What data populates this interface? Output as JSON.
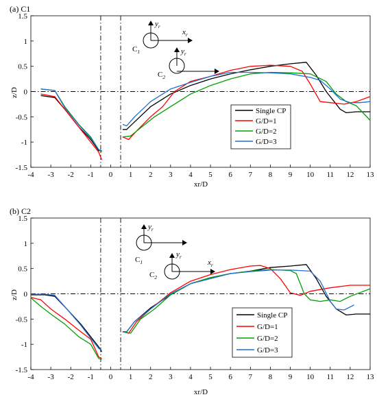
{
  "chart_data": [
    {
      "type": "line",
      "title": "(a) C1",
      "xlabel": "xr/D",
      "ylabel": "z/D",
      "xlim": [
        -4,
        13
      ],
      "ylim": [
        -1.5,
        1.5
      ],
      "xticks": [
        "-4",
        "-3",
        "-2",
        "-1",
        "0",
        "1",
        "2",
        "3",
        "4",
        "5",
        "6",
        "7",
        "8",
        "9",
        "10",
        "11",
        "12",
        "13"
      ],
      "yticks": [
        "-1.5",
        "-1",
        "-0.5",
        "0",
        "0.5",
        "1",
        "1.5"
      ],
      "grid": false,
      "legend_position": "lower-right",
      "reference_lines": {
        "horizontal_y": 0,
        "vertical_x": [
          -0.5,
          0.5
        ]
      },
      "inset_labels": {
        "c1": "C",
        "c1_sub": "1",
        "c2": "C",
        "c2_sub": "2",
        "yr": "y",
        "yr_sub": "r",
        "xr": "x",
        "xr_sub": "r"
      },
      "series": [
        {
          "name": "Single CP",
          "color": "#000000",
          "segments": [
            [
              [
                -3.5,
                -0.08
              ],
              [
                -2.8,
                -0.12
              ],
              [
                -2.3,
                -0.35
              ],
              [
                -1.6,
                -0.7
              ],
              [
                -1.0,
                -0.95
              ],
              [
                -0.6,
                -1.17
              ],
              [
                -0.45,
                -1.17
              ]
            ],
            [
              [
                0.6,
                -0.75
              ],
              [
                0.8,
                -0.75
              ],
              [
                1.2,
                -0.6
              ],
              [
                2.0,
                -0.3
              ],
              [
                3.0,
                -0.05
              ],
              [
                4.0,
                0.12
              ],
              [
                5.0,
                0.25
              ],
              [
                6.0,
                0.35
              ],
              [
                7.0,
                0.43
              ],
              [
                8.0,
                0.5
              ],
              [
                9.0,
                0.55
              ],
              [
                9.8,
                0.58
              ],
              [
                10.3,
                0.32
              ],
              [
                10.8,
                0.0
              ],
              [
                11.5,
                -0.35
              ],
              [
                11.8,
                -0.42
              ],
              [
                12.3,
                -0.4
              ],
              [
                13.0,
                -0.4
              ]
            ]
          ]
        },
        {
          "name": "G/D=1",
          "color": "#ff0000",
          "segments": [
            [
              [
                -3.5,
                -0.05
              ],
              [
                -2.8,
                -0.1
              ],
              [
                -2.2,
                -0.4
              ],
              [
                -1.5,
                -0.75
              ],
              [
                -1.0,
                -1.0
              ],
              [
                -0.6,
                -1.2
              ],
              [
                -0.45,
                -1.35
              ]
            ],
            [
              [
                0.6,
                -0.9
              ],
              [
                0.9,
                -0.95
              ],
              [
                1.3,
                -0.78
              ],
              [
                2.0,
                -0.5
              ],
              [
                2.6,
                -0.3
              ],
              [
                3.2,
                0.0
              ],
              [
                4.0,
                0.2
              ],
              [
                5.0,
                0.3
              ],
              [
                6.0,
                0.42
              ],
              [
                7.0,
                0.5
              ],
              [
                8.0,
                0.52
              ],
              [
                9.0,
                0.5
              ],
              [
                9.6,
                0.4
              ],
              [
                10.0,
                0.15
              ],
              [
                10.5,
                -0.2
              ],
              [
                11.0,
                -0.22
              ],
              [
                11.7,
                -0.25
              ],
              [
                12.3,
                -0.2
              ],
              [
                13.0,
                -0.1
              ]
            ]
          ]
        },
        {
          "name": "G/D=2",
          "color": "#00a000",
          "segments": [
            [
              [
                -3.5,
                0.05
              ],
              [
                -2.8,
                0.02
              ],
              [
                -2.3,
                -0.3
              ],
              [
                -1.6,
                -0.65
              ],
              [
                -1.0,
                -0.9
              ],
              [
                -0.6,
                -1.15
              ],
              [
                -0.45,
                -1.2
              ]
            ],
            [
              [
                0.6,
                -0.9
              ],
              [
                1.0,
                -0.88
              ],
              [
                1.5,
                -0.72
              ],
              [
                2.2,
                -0.5
              ],
              [
                3.0,
                -0.3
              ],
              [
                4.0,
                -0.05
              ],
              [
                5.0,
                0.12
              ],
              [
                6.0,
                0.25
              ],
              [
                7.0,
                0.35
              ],
              [
                8.0,
                0.38
              ],
              [
                9.0,
                0.37
              ],
              [
                10.0,
                0.35
              ],
              [
                10.8,
                0.2
              ],
              [
                11.3,
                -0.05
              ],
              [
                11.8,
                -0.2
              ],
              [
                12.3,
                -0.28
              ],
              [
                13.0,
                -0.57
              ]
            ]
          ]
        },
        {
          "name": "G/D=3",
          "color": "#1f6fd1",
          "segments": [
            [
              [
                -3.5,
                0.05
              ],
              [
                -2.8,
                0.02
              ],
              [
                -2.3,
                -0.32
              ],
              [
                -1.6,
                -0.66
              ],
              [
                -1.0,
                -0.92
              ],
              [
                -0.6,
                -1.15
              ],
              [
                -0.45,
                -1.18
              ]
            ],
            [
              [
                0.6,
                -0.65
              ],
              [
                0.8,
                -0.68
              ],
              [
                1.2,
                -0.5
              ],
              [
                2.0,
                -0.2
              ],
              [
                3.0,
                0.05
              ],
              [
                4.0,
                0.18
              ],
              [
                5.0,
                0.3
              ],
              [
                6.0,
                0.38
              ],
              [
                7.0,
                0.38
              ],
              [
                8.0,
                0.37
              ],
              [
                9.0,
                0.35
              ],
              [
                10.0,
                0.28
              ],
              [
                10.5,
                0.22
              ],
              [
                11.0,
                0.05
              ],
              [
                11.5,
                -0.15
              ],
              [
                12.0,
                -0.22
              ],
              [
                12.5,
                -0.22
              ],
              [
                13.0,
                -0.2
              ]
            ]
          ]
        }
      ]
    },
    {
      "type": "line",
      "title": "(b) C2",
      "xlabel": "xr/D",
      "ylabel": "z/D",
      "xlim": [
        -4,
        13
      ],
      "ylim": [
        -1.5,
        1.5
      ],
      "xticks": [
        "-4",
        "-3",
        "-2",
        "-1",
        "0",
        "1",
        "2",
        "3",
        "4",
        "5",
        "6",
        "7",
        "8",
        "9",
        "10",
        "11",
        "12",
        "13"
      ],
      "yticks": [
        "-1.5",
        "-1",
        "-0.5",
        "0",
        "0.5",
        "1",
        "1.5"
      ],
      "grid": false,
      "legend_position": "lower-right",
      "reference_lines": {
        "horizontal_y": 0,
        "vertical_x": [
          -0.5,
          0.5
        ]
      },
      "inset_labels": {
        "c1": "C",
        "c1_sub": "1",
        "c2": "C",
        "c2_sub": "2",
        "yr": "y",
        "yr_sub": "r",
        "xr": "x",
        "xr_sub": "r"
      },
      "series": [
        {
          "name": "Single CP",
          "color": "#000000",
          "segments": [
            [
              [
                -4.0,
                -0.02
              ],
              [
                -3.3,
                -0.02
              ],
              [
                -2.8,
                -0.05
              ],
              [
                -2.2,
                -0.3
              ],
              [
                -1.5,
                -0.6
              ],
              [
                -1.0,
                -0.85
              ],
              [
                -0.6,
                -1.05
              ],
              [
                -0.45,
                -1.15
              ]
            ],
            [
              [
                0.6,
                -0.75
              ],
              [
                0.8,
                -0.75
              ],
              [
                1.2,
                -0.55
              ],
              [
                2.0,
                -0.28
              ],
              [
                3.0,
                -0.02
              ],
              [
                4.0,
                0.2
              ],
              [
                5.0,
                0.32
              ],
              [
                6.0,
                0.4
              ],
              [
                7.0,
                0.45
              ],
              [
                8.0,
                0.52
              ],
              [
                9.0,
                0.55
              ],
              [
                9.8,
                0.58
              ],
              [
                10.3,
                0.3
              ],
              [
                10.8,
                -0.05
              ],
              [
                11.3,
                -0.3
              ],
              [
                11.8,
                -0.42
              ],
              [
                12.3,
                -0.4
              ],
              [
                13.0,
                -0.4
              ]
            ]
          ]
        },
        {
          "name": "G/D=1",
          "color": "#ff0000",
          "segments": [
            [
              [
                -4.0,
                -0.07
              ],
              [
                -3.5,
                -0.12
              ],
              [
                -3.0,
                -0.3
              ],
              [
                -2.3,
                -0.5
              ],
              [
                -1.6,
                -0.72
              ],
              [
                -1.0,
                -0.9
              ],
              [
                -0.6,
                -1.25
              ],
              [
                -0.45,
                -1.28
              ]
            ],
            [
              [
                0.6,
                -0.75
              ],
              [
                0.9,
                -0.78
              ],
              [
                1.3,
                -0.55
              ],
              [
                2.0,
                -0.3
              ],
              [
                3.0,
                0.02
              ],
              [
                4.0,
                0.25
              ],
              [
                5.0,
                0.38
              ],
              [
                6.0,
                0.48
              ],
              [
                7.0,
                0.55
              ],
              [
                7.5,
                0.56
              ],
              [
                8.0,
                0.5
              ],
              [
                8.5,
                0.3
              ],
              [
                9.0,
                0.02
              ],
              [
                9.5,
                -0.03
              ],
              [
                10.0,
                0.05
              ],
              [
                11.0,
                0.12
              ],
              [
                12.0,
                0.17
              ],
              [
                13.0,
                0.17
              ]
            ]
          ]
        },
        {
          "name": "G/D=2",
          "color": "#00a000",
          "segments": [
            [
              [
                -4.0,
                -0.08
              ],
              [
                -3.5,
                -0.25
              ],
              [
                -3.0,
                -0.4
              ],
              [
                -2.3,
                -0.6
              ],
              [
                -1.6,
                -0.85
              ],
              [
                -1.0,
                -1.0
              ],
              [
                -0.6,
                -1.28
              ],
              [
                -0.45,
                -1.3
              ]
            ],
            [
              [
                0.6,
                -0.75
              ],
              [
                1.0,
                -0.78
              ],
              [
                1.5,
                -0.5
              ],
              [
                2.2,
                -0.3
              ],
              [
                3.0,
                -0.02
              ],
              [
                4.0,
                0.2
              ],
              [
                5.0,
                0.32
              ],
              [
                6.0,
                0.4
              ],
              [
                7.0,
                0.45
              ],
              [
                8.0,
                0.48
              ],
              [
                9.0,
                0.46
              ],
              [
                9.3,
                0.4
              ],
              [
                9.7,
                0.0
              ],
              [
                10.0,
                -0.12
              ],
              [
                10.5,
                -0.15
              ],
              [
                11.0,
                -0.12
              ],
              [
                11.5,
                -0.15
              ],
              [
                12.0,
                -0.05
              ],
              [
                13.0,
                0.1
              ]
            ]
          ]
        },
        {
          "name": "G/D=3",
          "color": "#1f6fd1",
          "segments": [
            [
              [
                -4.0,
                -0.01
              ],
              [
                -3.3,
                -0.01
              ],
              [
                -2.8,
                -0.03
              ],
              [
                -2.2,
                -0.3
              ],
              [
                -1.5,
                -0.62
              ],
              [
                -1.0,
                -0.88
              ],
              [
                -0.6,
                -1.08
              ],
              [
                -0.45,
                -1.12
              ]
            ],
            [
              [
                0.6,
                -0.75
              ],
              [
                0.8,
                -0.75
              ],
              [
                1.2,
                -0.55
              ],
              [
                2.0,
                -0.3
              ],
              [
                3.0,
                0.0
              ],
              [
                4.0,
                0.2
              ],
              [
                5.0,
                0.3
              ],
              [
                6.0,
                0.4
              ],
              [
                7.0,
                0.44
              ],
              [
                8.0,
                0.47
              ],
              [
                9.0,
                0.47
              ],
              [
                10.0,
                0.45
              ],
              [
                10.5,
                0.25
              ],
              [
                11.0,
                -0.15
              ],
              [
                11.3,
                -0.3
              ],
              [
                11.7,
                -0.32
              ],
              [
                12.2,
                -0.22
              ]
            ]
          ]
        }
      ]
    }
  ]
}
